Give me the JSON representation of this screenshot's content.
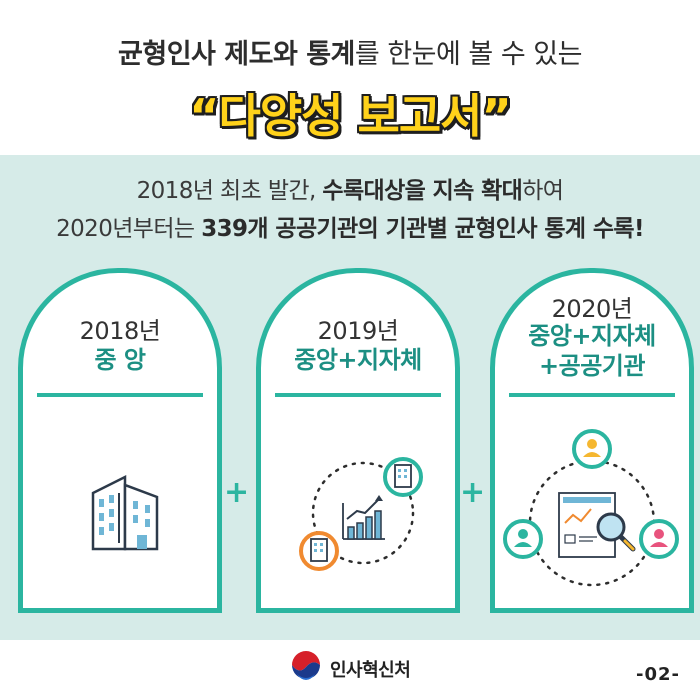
{
  "header": {
    "line1_bold": "균형인사 제도와 통계",
    "line1_light": "를 한눈에 볼 수 있는",
    "line2": "“다양성 보고서”"
  },
  "description": {
    "line1_part1": "2018년 최초 발간, ",
    "line1_bold": "수록대상을 지속 확대",
    "line1_part2": "하여",
    "line2_part1": "2020년부터는 ",
    "line2_bold": "339개 공공기관의 기관별 균형인사 통계 수록!"
  },
  "cards": [
    {
      "year": "2018년",
      "name": "중 앙",
      "icon": "building-icon"
    },
    {
      "year": "2019년",
      "name": "중앙+지자체",
      "icon": "growth-chart-icon"
    },
    {
      "year": "2020년",
      "name_line1": "중앙+지자체",
      "name_line2": "+공공기관",
      "icon": "report-search-icon"
    }
  ],
  "plus_sign": "+",
  "footer": {
    "org_name": "인사혁신처",
    "page_number": "-02-"
  },
  "colors": {
    "accent": "#2bb5a0",
    "accent_dark": "#1c8f83",
    "title_yellow": "#ffd21a",
    "panel_bg": "#d6ebe8"
  }
}
